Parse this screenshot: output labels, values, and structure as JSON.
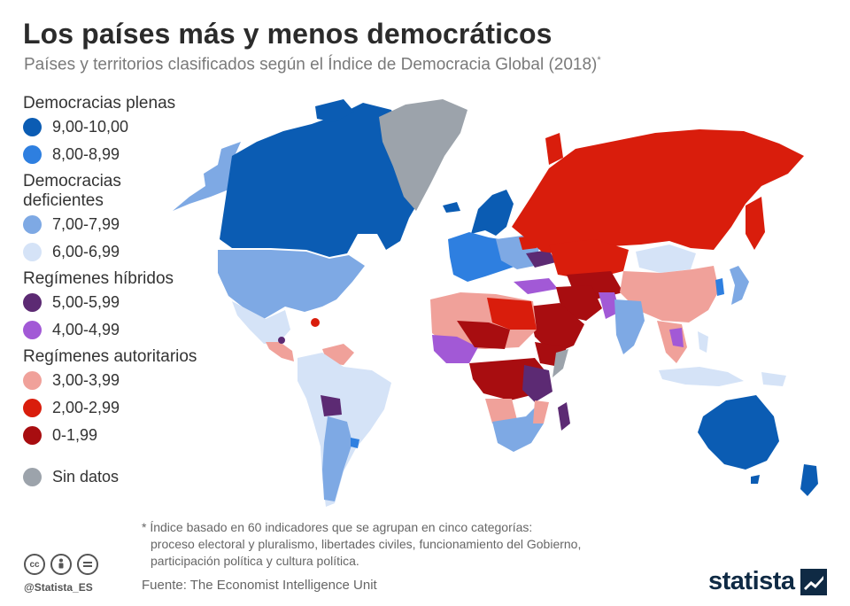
{
  "header": {
    "title": "Los países más y menos democráticos",
    "subtitle": "Países y territorios clasificados según el Índice de Democracia Global (2018)",
    "subtitle_mark": "*"
  },
  "legend": {
    "groups": [
      {
        "heading": "Democracias plenas",
        "items": [
          {
            "label": "9,00-10,00",
            "color": "#0b5cb3"
          },
          {
            "label": "8,00-8,99",
            "color": "#2e7fe0"
          }
        ]
      },
      {
        "heading": "Democracias deficientes",
        "items": [
          {
            "label": "7,00-7,99",
            "color": "#7ea9e4"
          },
          {
            "label": "6,00-6,99",
            "color": "#d5e3f7"
          }
        ]
      },
      {
        "heading": "Regímenes híbridos",
        "items": [
          {
            "label": "5,00-5,99",
            "color": "#5c2a73"
          },
          {
            "label": "4,00-4,99",
            "color": "#a259d6"
          }
        ]
      },
      {
        "heading": "Regímenes autoritarios",
        "items": [
          {
            "label": "3,00-3,99",
            "color": "#f0a19a"
          },
          {
            "label": "2,00-2,99",
            "color": "#d91d0c"
          },
          {
            "label": "0-1,99",
            "color": "#a80d10"
          }
        ]
      }
    ],
    "no_data": {
      "label": "Sin datos",
      "color": "#9ca3ab"
    }
  },
  "footnote": {
    "line1": "* Índice basado en 60 indicadores que se agrupan en cinco categorías:",
    "line2": "proceso electoral y pluralismo, libertades civiles, funcionamiento del Gobierno,",
    "line3": "participación política y cultura política."
  },
  "footer": {
    "handle": "@Statista_ES",
    "source": "Fuente: The Economist Intelligence Unit",
    "brand": "statista",
    "license_icons": [
      "creative-commons-icon",
      "attribution-icon",
      "no-derivatives-icon"
    ]
  }
}
